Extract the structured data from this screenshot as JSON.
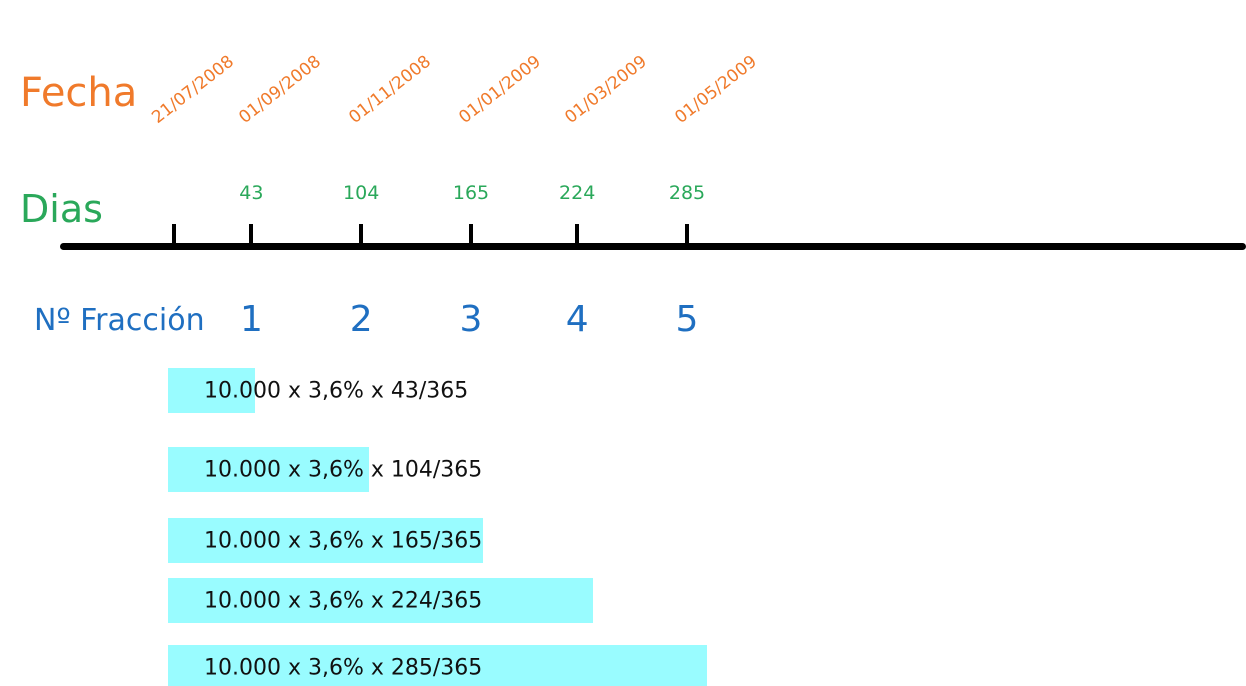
{
  "colors": {
    "fecha": "#f07a2b",
    "dias": "#2aa85a",
    "fraccion": "#1f6fc1",
    "axis": "#000000",
    "bar": "#99fcff",
    "bar_text": "#111111"
  },
  "labels": {
    "fecha": "Fecha",
    "dias": "Dias",
    "fraccion": "Nº Fracción"
  },
  "origin_date": "21/07/2008",
  "fractions": [
    {
      "number": "1",
      "date": "01/09/2008",
      "days": "43",
      "days_value": 43,
      "formula": "10.000 x 3,6% x 43/365"
    },
    {
      "number": "2",
      "date": "01/11/2008",
      "days": "104",
      "days_value": 104,
      "formula": "10.000 x 3,6% x 104/365"
    },
    {
      "number": "3",
      "date": "01/01/2009",
      "days": "165",
      "days_value": 165,
      "formula": "10.000 x 3,6% x 165/365"
    },
    {
      "number": "4",
      "date": "01/03/2009",
      "days": "224",
      "days_value": 224,
      "formula": "10.000 x 3,6% x 224/365"
    },
    {
      "number": "5",
      "date": "01/05/2009",
      "days": "285",
      "days_value": 285,
      "formula": "10.000 x 3,6% x 285/365"
    }
  ]
}
